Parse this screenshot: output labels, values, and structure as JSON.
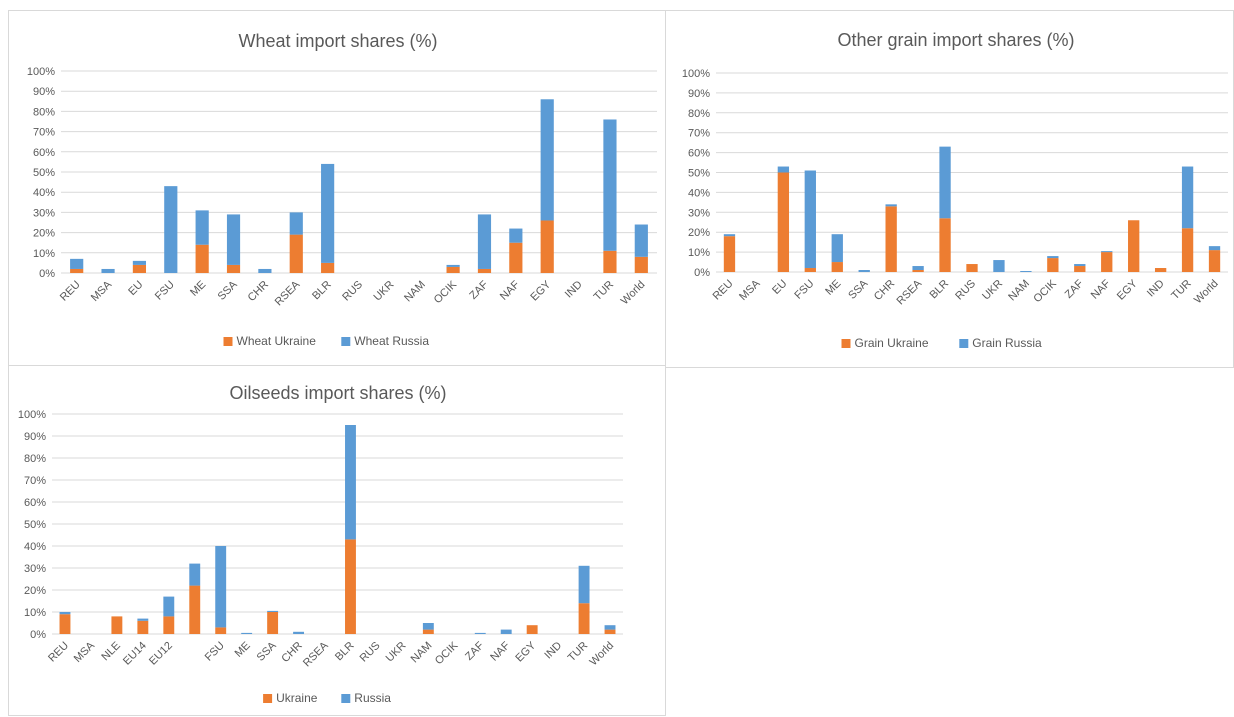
{
  "colors": {
    "ukraine": "#ED7D31",
    "russia": "#5B9BD5"
  },
  "chart_data": [
    {
      "type": "bar",
      "stacked": true,
      "title": "Wheat  import shares (%)",
      "categories": [
        "REU",
        "MSA",
        "EU",
        "FSU",
        "ME",
        "SSA",
        "CHR",
        "RSEA",
        "BLR",
        "RUS",
        "UKR",
        "NAM",
        "OCIK",
        "ZAF",
        "NAF",
        "EGY",
        "IND",
        "TUR",
        "World"
      ],
      "series": [
        {
          "name": "Wheat Ukraine",
          "values": [
            2,
            0,
            4,
            0,
            14,
            4,
            0,
            19,
            5,
            0,
            0,
            0,
            3,
            2,
            15,
            26,
            0,
            11,
            8
          ]
        },
        {
          "name": "Wheat Russia",
          "values": [
            5,
            2,
            2,
            43,
            17,
            25,
            2,
            11,
            49,
            0,
            0,
            0,
            1,
            27,
            7,
            60,
            0,
            65,
            16
          ]
        }
      ],
      "y_ticks": [
        "0%",
        "10%",
        "20%",
        "30%",
        "40%",
        "50%",
        "60%",
        "70%",
        "80%",
        "90%",
        "100%"
      ],
      "ylim": [
        0,
        100
      ],
      "grid": true,
      "legend_position": "bottom"
    },
    {
      "type": "bar",
      "stacked": true,
      "title": "Other grain import shares (%)",
      "categories": [
        "REU",
        "MSA",
        "EU",
        "FSU",
        "ME",
        "SSA",
        "CHR",
        "RSEA",
        "BLR",
        "RUS",
        "UKR",
        "NAM",
        "OCIK",
        "ZAF",
        "NAF",
        "EGY",
        "IND",
        "TUR",
        "World"
      ],
      "series": [
        {
          "name": "Grain Ukraine",
          "values": [
            18,
            0,
            50,
            2,
            5,
            0,
            33,
            1,
            27,
            4,
            0,
            0,
            7,
            3,
            10,
            26,
            2,
            22,
            11
          ]
        },
        {
          "name": "Grain Russia",
          "values": [
            1,
            0,
            3,
            49,
            14,
            1,
            1,
            2,
            36,
            0,
            6,
            0.5,
            1,
            1,
            0.5,
            0,
            0,
            31,
            2
          ]
        }
      ],
      "y_ticks": [
        "0%",
        "10%",
        "20%",
        "30%",
        "40%",
        "50%",
        "60%",
        "70%",
        "80%",
        "90%",
        "100%"
      ],
      "ylim": [
        0,
        100
      ],
      "grid": true,
      "legend_position": "bottom"
    },
    {
      "type": "bar",
      "stacked": true,
      "title": "Oilseeds import shares (%)",
      "categories": [
        "REU",
        "MSA",
        "NLE",
        "EU14",
        "EU12",
        "",
        "FSU",
        "ME",
        "SSA",
        "CHR",
        "RSEA",
        "BLR",
        "RUS",
        "UKR",
        "NAM",
        "OCIK",
        "ZAF",
        "NAF",
        "EGY",
        "IND",
        "TUR",
        "World"
      ],
      "series": [
        {
          "name": "Ukraine",
          "values": [
            9,
            0,
            8,
            6,
            8,
            22,
            3,
            0,
            10,
            0,
            0,
            43,
            0,
            0,
            2,
            0,
            0,
            0,
            4,
            0,
            14,
            2
          ]
        },
        {
          "name": "Russia",
          "values": [
            1,
            0,
            0,
            1,
            9,
            10,
            37,
            0.5,
            0.5,
            1,
            0,
            52,
            0,
            0,
            3,
            0,
            0.5,
            2,
            0,
            0,
            17,
            2
          ]
        }
      ],
      "y_ticks": [
        "0%",
        "10%",
        "20%",
        "30%",
        "40%",
        "50%",
        "60%",
        "70%",
        "80%",
        "90%",
        "100%"
      ],
      "ylim": [
        0,
        100
      ],
      "grid": true,
      "legend_position": "bottom"
    }
  ]
}
